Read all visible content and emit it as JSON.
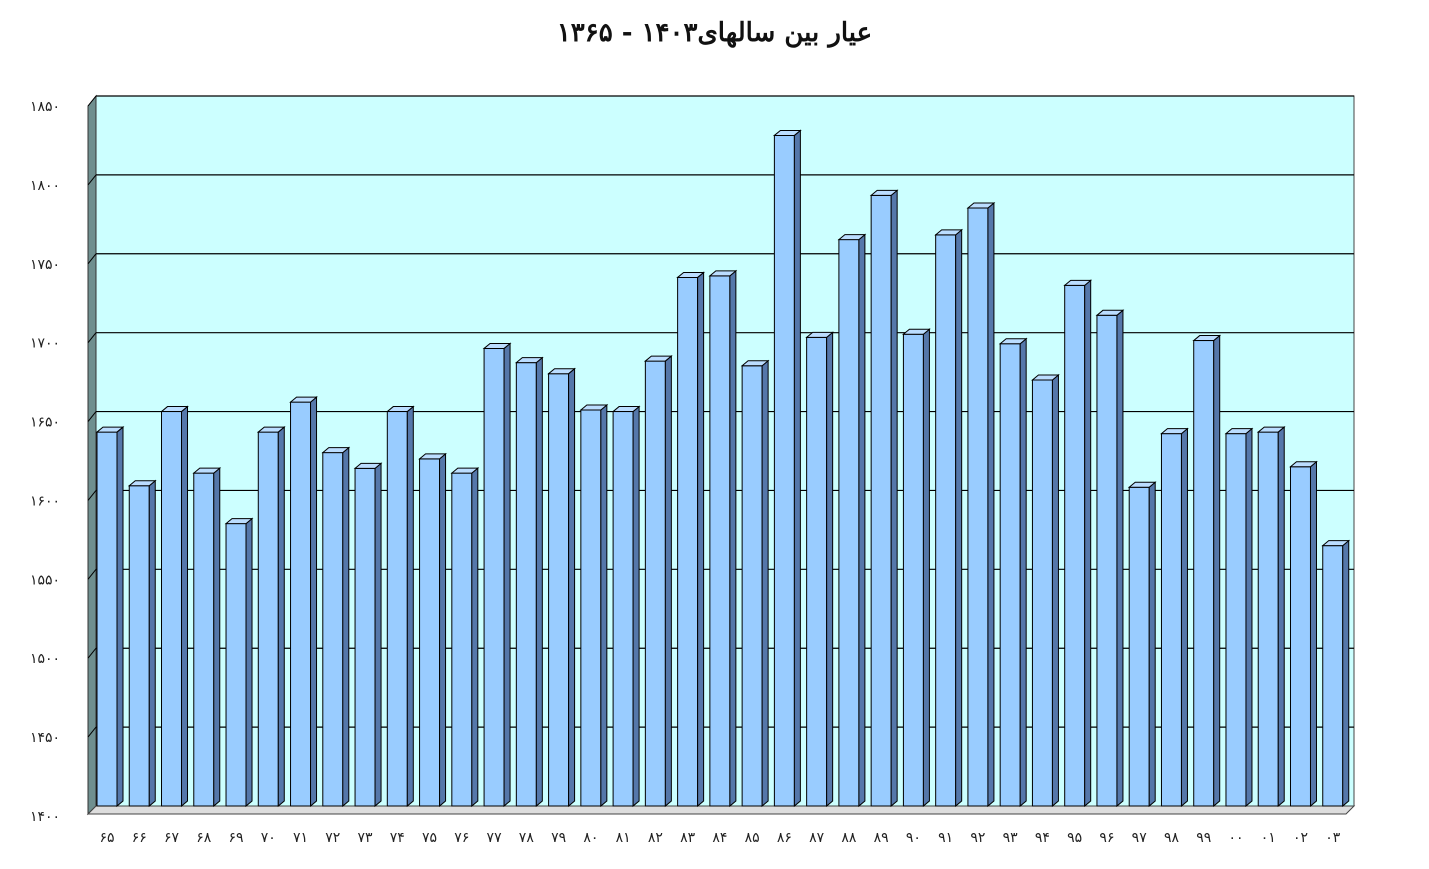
{
  "chart_data": {
    "type": "bar",
    "title": "عیار بین سالهای۱۴۰۳ - ۱۳۶۵",
    "xlabel": "",
    "ylabel": "",
    "ylim": [
      1400,
      1850
    ],
    "yticks": [
      1400,
      1450,
      1500,
      1550,
      1600,
      1650,
      1700,
      1750,
      1800,
      1850
    ],
    "ytick_labels": [
      "۱۴۰۰",
      "۱۴۵۰",
      "۱۵۰۰",
      "۱۵۵۰",
      "۱۶۰۰",
      "۱۶۵۰",
      "۱۷۰۰",
      "۱۷۵۰",
      "۱۸۰۰",
      "۱۸۵۰"
    ],
    "grid": true,
    "legend": "none",
    "categories": [
      "۶۵",
      "۶۶",
      "۶۷",
      "۶۸",
      "۶۹",
      "۷۰",
      "۷۱",
      "۷۲",
      "۷۳",
      "۷۴",
      "۷۵",
      "۷۶",
      "۷۷",
      "۷۸",
      "۷۹",
      "۸۰",
      "۸۱",
      "۸۲",
      "۸۳",
      "۸۴",
      "۸۵",
      "۸۶",
      "۸۷",
      "۸۸",
      "۸۹",
      "۹۰",
      "۹۱",
      "۹۲",
      "۹۳",
      "۹۴",
      "۹۵",
      "۹۶",
      "۹۷",
      "۹۸",
      "۹۹",
      "۰۰",
      "۰۱",
      "۰۲",
      "۰۳"
    ],
    "values": [
      1637,
      1603,
      1650,
      1611,
      1579,
      1637,
      1656,
      1624,
      1614,
      1650,
      1620,
      1611,
      1690,
      1681,
      1674,
      1651,
      1650,
      1682,
      1735,
      1736,
      1679,
      1825,
      1697,
      1759,
      1787,
      1699,
      1762,
      1779,
      1693,
      1670,
      1730,
      1711,
      1602,
      1636,
      1695,
      1636,
      1637,
      1615,
      1565
    ],
    "colors": {
      "plot_bg": "#ccffff",
      "bar_front": "#99ccff",
      "bar_side": "#5577aa",
      "bar_top": "#bbddff",
      "wall": "#6f8f8f",
      "grid": "#000000"
    }
  }
}
